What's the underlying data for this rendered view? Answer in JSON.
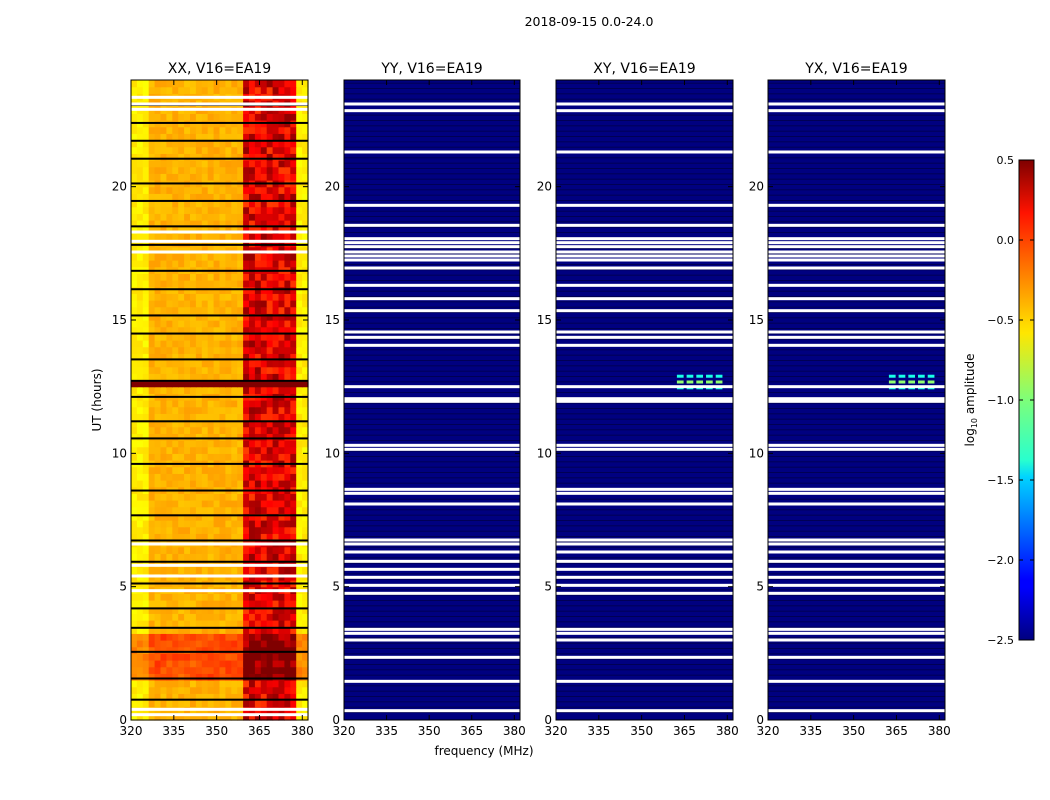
{
  "figure": {
    "suptitle": "2018-09-15 0.0-24.0",
    "xlabel": "frequency (MHz)",
    "ylabel": "UT (hours)"
  },
  "colorbar": {
    "label_prefix": "log",
    "label_sub": "10",
    "label_suffix": " amplitude",
    "colormap": "jet",
    "range": [
      -2.5,
      0.5
    ],
    "ticks": [
      "0.5",
      "0.0",
      "−0.5",
      "−1.0",
      "−1.5",
      "−2.0",
      "−2.5"
    ],
    "tick_values": [
      0.5,
      0.0,
      -0.5,
      -1.0,
      -1.5,
      -2.0,
      -2.5
    ]
  },
  "chart_data": [
    {
      "type": "heatmap",
      "title": "XX, V16=EA19",
      "polarization": "XX",
      "xlim": [
        320,
        382
      ],
      "ylim": [
        0,
        24
      ],
      "xticks": [
        320,
        335,
        350,
        365,
        380
      ],
      "yticks": [
        0,
        5,
        10,
        15,
        20
      ],
      "xtick_labels": [
        "320",
        "335",
        "350",
        "365",
        "380"
      ],
      "ytick_labels": [
        "0",
        "5",
        "10",
        "15",
        "20"
      ],
      "show_xlabel": false,
      "show_ylabel": true,
      "typical_log10_amplitude": -0.4,
      "hot_band_mhz": [
        360,
        378
      ],
      "hot_band_log10_amplitude": 0.2,
      "bright_hours": [
        [
          1.5,
          3.3
        ]
      ],
      "saturated_hours": [
        [
          12.45,
          12.8
        ]
      ],
      "missing_hours": [
        0.2,
        0.4,
        4.85,
        5.4,
        5.8,
        6.6,
        17.55,
        17.95,
        18.3,
        22.9,
        23.1,
        23.35
      ]
    },
    {
      "type": "heatmap",
      "title": "YY, V16=EA19",
      "polarization": "YY",
      "xlim": [
        320,
        382
      ],
      "ylim": [
        0,
        24
      ],
      "xticks": [
        320,
        335,
        350,
        365,
        380
      ],
      "yticks": [
        0,
        5,
        10,
        15,
        20
      ],
      "xtick_labels": [
        "320",
        "335",
        "350",
        "365",
        "380"
      ],
      "ytick_labels": [
        "0",
        "5",
        "10",
        "15",
        "20"
      ],
      "show_xlabel": true,
      "show_ylabel": false,
      "typical_log10_amplitude": -2.5,
      "missing_hours": [
        0.35,
        1.45,
        2.35,
        3.0,
        3.25,
        3.4,
        4.75,
        5.05,
        5.35,
        5.65,
        5.95,
        6.3,
        6.6,
        6.75,
        8.1,
        8.5,
        8.65,
        10.15,
        10.3,
        11.95,
        12.05,
        12.5,
        14.05,
        14.35,
        14.55,
        15.35,
        15.8,
        16.3,
        16.95,
        17.25,
        17.4,
        17.55,
        17.75,
        17.9,
        18.05,
        18.55,
        19.3,
        21.3,
        22.85,
        23.1
      ]
    },
    {
      "type": "heatmap",
      "title": "XY, V16=EA19",
      "polarization": "XY",
      "xlim": [
        320,
        382
      ],
      "ylim": [
        0,
        24
      ],
      "xticks": [
        320,
        335,
        350,
        365,
        380
      ],
      "yticks": [
        0,
        5,
        10,
        15,
        20
      ],
      "xtick_labels": [
        "320",
        "335",
        "350",
        "365",
        "380"
      ],
      "ytick_labels": [
        "0",
        "5",
        "10",
        "15",
        "20"
      ],
      "show_xlabel": false,
      "show_ylabel": false,
      "typical_log10_amplitude": -2.5,
      "feature_hours": [
        12.35,
        13.0
      ],
      "feature_mhz": [
        362,
        379
      ],
      "feature_log10_amplitude": -1.3,
      "missing_hours": [
        0.35,
        1.45,
        2.35,
        3.0,
        3.25,
        3.4,
        4.75,
        5.05,
        5.35,
        5.65,
        5.95,
        6.3,
        6.6,
        6.75,
        8.1,
        8.5,
        8.65,
        10.15,
        10.3,
        11.95,
        12.05,
        12.5,
        14.05,
        14.35,
        14.55,
        15.35,
        15.8,
        16.3,
        16.95,
        17.25,
        17.4,
        17.55,
        17.75,
        17.9,
        18.05,
        18.55,
        19.3,
        21.3,
        22.85,
        23.1
      ]
    },
    {
      "type": "heatmap",
      "title": "YX, V16=EA19",
      "polarization": "YX",
      "xlim": [
        320,
        382
      ],
      "ylim": [
        0,
        24
      ],
      "xticks": [
        320,
        335,
        350,
        365,
        380
      ],
      "yticks": [
        0,
        5,
        10,
        15,
        20
      ],
      "xtick_labels": [
        "320",
        "335",
        "350",
        "365",
        "380"
      ],
      "ytick_labels": [
        "0",
        "5",
        "10",
        "15",
        "20"
      ],
      "show_xlabel": false,
      "show_ylabel": false,
      "typical_log10_amplitude": -2.5,
      "feature_hours": [
        12.35,
        13.0
      ],
      "feature_mhz": [
        362,
        379
      ],
      "feature_log10_amplitude": -1.3,
      "missing_hours": [
        0.35,
        1.45,
        2.35,
        3.0,
        3.25,
        3.4,
        4.75,
        5.05,
        5.35,
        5.65,
        5.95,
        6.3,
        6.6,
        6.75,
        8.1,
        8.5,
        8.65,
        10.15,
        10.3,
        11.95,
        12.05,
        12.5,
        14.05,
        14.35,
        14.55,
        15.35,
        15.8,
        16.3,
        16.95,
        17.25,
        17.4,
        17.55,
        17.75,
        17.9,
        18.05,
        18.55,
        19.3,
        21.3,
        22.85,
        23.1
      ]
    }
  ]
}
